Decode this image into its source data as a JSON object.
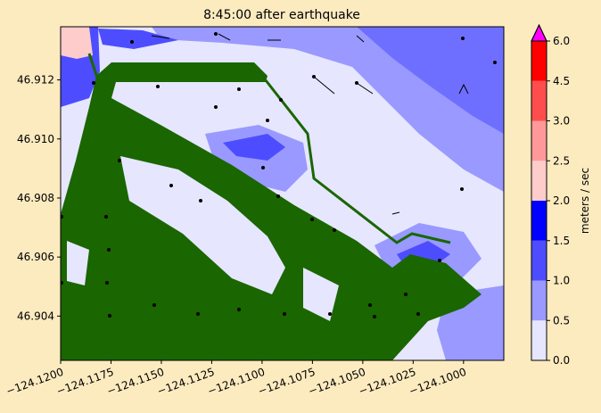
{
  "chart_data": {
    "type": "contour",
    "title": "8:45:00 after earthquake",
    "xlim": [
      -124.12,
      -124.098
    ],
    "ylim": [
      46.9025,
      46.9138
    ],
    "xticks": [
      {
        "value": -124.12,
        "label": "−124.1200"
      },
      {
        "value": -124.1175,
        "label": "−124.1175"
      },
      {
        "value": -124.115,
        "label": "−124.1150"
      },
      {
        "value": -124.1125,
        "label": "−124.1125"
      },
      {
        "value": -124.11,
        "label": "−124.1100"
      },
      {
        "value": -124.1075,
        "label": "−124.1075"
      },
      {
        "value": -124.105,
        "label": "−124.1050"
      },
      {
        "value": -124.1025,
        "label": "−124.1025"
      },
      {
        "value": -124.1,
        "label": "−124.1000"
      }
    ],
    "yticks": [
      46.904,
      46.906,
      46.908,
      {
        "value": 46.91,
        "label": "46.910"
      },
      46.912
    ],
    "colorbar": {
      "label": "meters / sec",
      "ticks": [
        {
          "value": 0,
          "label": "0.0"
        },
        {
          "value": 0.5,
          "label": "0.5"
        },
        {
          "value": 1,
          "label": "1.0"
        },
        {
          "value": 1.5,
          "label": "1.5"
        },
        {
          "value": 2,
          "label": "2.0"
        },
        {
          "value": 2.5,
          "label": "2.5"
        },
        {
          "value": 3,
          "label": "3.0"
        },
        {
          "value": 4.5,
          "label": "4.5"
        },
        {
          "value": 6,
          "label": "6.0"
        }
      ],
      "colors": [
        "#e6e6ff",
        "#9999ff",
        "#4d4dff",
        "#0000ff",
        "#ffcccc",
        "#ff9999",
        "#ff4d4d",
        "#ff0000"
      ],
      "extend_color": "#ff00ff"
    }
  }
}
